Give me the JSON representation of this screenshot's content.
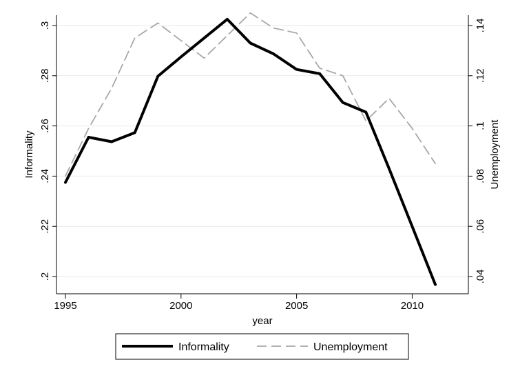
{
  "chart_data": {
    "type": "line",
    "title": "",
    "xlabel": "year",
    "ylabel_left": "Informality",
    "ylabel_right": "Unemployment",
    "x": [
      1995,
      1996,
      1997,
      1998,
      1999,
      2000,
      2001,
      2002,
      2003,
      2004,
      2005,
      2006,
      2007,
      2008,
      2009,
      2010,
      2011
    ],
    "xlim": [
      1995,
      2011
    ],
    "xticks": [
      1995,
      2000,
      2005,
      2010
    ],
    "xtick_labels": [
      "1995",
      "2000",
      "2005",
      "2010"
    ],
    "ylim_left": [
      0.2,
      0.3
    ],
    "yticks_left": [
      0.2,
      0.22,
      0.24,
      0.26,
      0.28,
      0.3
    ],
    "ytick_labels_left": [
      ".2",
      ".22",
      ".24",
      ".26",
      ".28",
      ".3"
    ],
    "ylim_right": [
      0.04,
      0.14
    ],
    "yticks_right": [
      0.04,
      0.06,
      0.08,
      0.1,
      0.12,
      0.14
    ],
    "ytick_labels_right": [
      ".04",
      ".06",
      ".08",
      ".1",
      ".12",
      ".14"
    ],
    "grid": true,
    "legend_position": "bottom",
    "series": [
      {
        "name": "Informality",
        "axis": "left",
        "color": "#000000",
        "style": "solid",
        "values": [
          0.2375,
          0.2555,
          0.2537,
          0.2573,
          0.2798,
          0.2875,
          0.295,
          0.3025,
          0.293,
          0.2887,
          0.2825,
          0.2808,
          0.2693,
          0.2655,
          0.243,
          0.22,
          0.1968
        ]
      },
      {
        "name": "Unemployment",
        "axis": "right",
        "color": "#a8a8a8",
        "style": "dashed",
        "values": [
          0.08,
          0.099,
          0.115,
          0.135,
          0.141,
          0.134,
          0.127,
          0.136,
          0.145,
          0.139,
          0.137,
          0.123,
          0.12,
          0.102,
          0.111,
          0.099,
          0.085
        ]
      }
    ]
  }
}
